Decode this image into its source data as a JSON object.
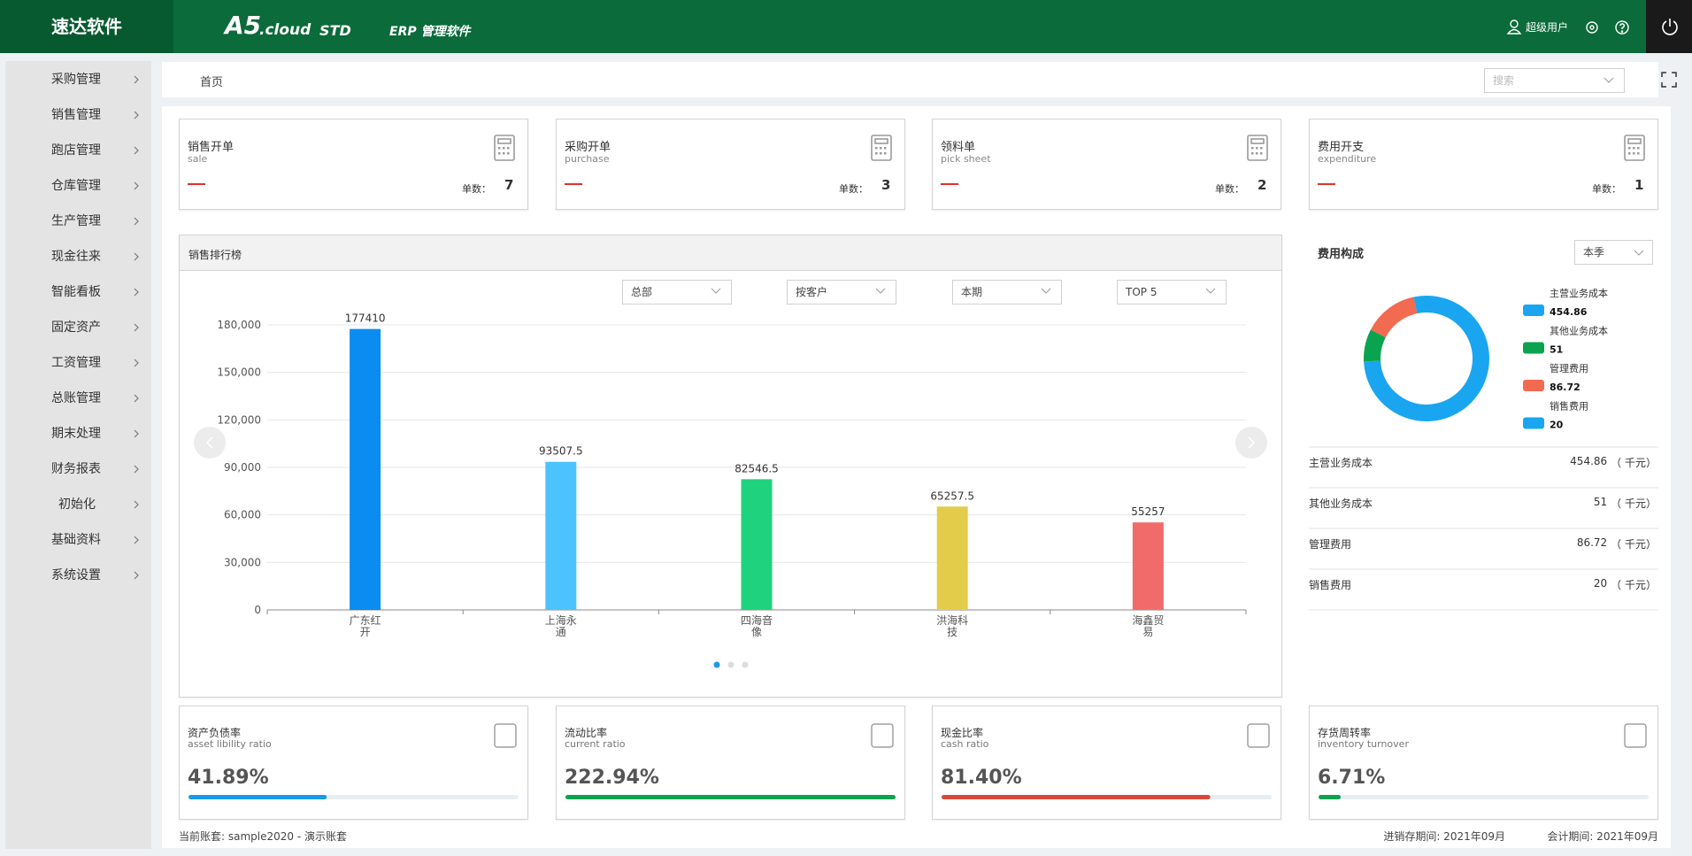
{
  "header": {
    "brand": "速达软件",
    "product": "A5",
    "product_suffix": ".cloud",
    "edition": "STD",
    "subtitle": "ERP 管理软件",
    "user": "超级用户"
  },
  "sidebar": {
    "items": [
      "采购管理",
      "销售管理",
      "跑店管理",
      "仓库管理",
      "生产管理",
      "现金往来",
      "智能看板",
      "固定资产",
      "工资管理",
      "总账管理",
      "期末处理",
      "财务报表",
      "初始化",
      "基础资料",
      "系统设置"
    ]
  },
  "breadcrumb": "首页",
  "search_placeholder": "搜索",
  "summary_cards": [
    {
      "title": "销售开单",
      "subtitle": "sale",
      "count_label": "单数：",
      "count": 7
    },
    {
      "title": "采购开单",
      "subtitle": "purchase",
      "count_label": "单数：",
      "count": 3
    },
    {
      "title": "领料单",
      "subtitle": "pick sheet",
      "count_label": "单数：",
      "count": 2
    },
    {
      "title": "费用开支",
      "subtitle": "expenditure",
      "count_label": "单数：",
      "count": 1
    }
  ],
  "sales_chart": {
    "type": "bar",
    "title": "销售排行榜",
    "filters": [
      "总部",
      "按客户",
      "本期",
      "TOP 5"
    ],
    "categories": [
      "广东红开",
      "上海永通",
      "四海音像",
      "洪海科技",
      "海鑫贸易"
    ],
    "values": [
      177410,
      93507.5,
      82546.5,
      65257.5,
      55257
    ],
    "colors": [
      "#0a8cf0",
      "#4cc3ff",
      "#1fd37e",
      "#e3cc4a",
      "#f26b6b"
    ],
    "ylim": [
      0,
      180000
    ],
    "yticks": [
      0,
      {
        "value": 30000,
        "label": "30,000"
      },
      {
        "value": 60000,
        "label": "60,000"
      },
      {
        "value": 90000,
        "label": "90,000"
      },
      {
        "value": 120000,
        "label": "120,000"
      },
      {
        "value": 150000,
        "label": "150,000"
      },
      {
        "value": 180000,
        "label": "180,000"
      }
    ],
    "grid": true
  },
  "cost_breakdown": {
    "type": "donut",
    "title": "费用构成",
    "period": "本季",
    "unit": "（ 千元）",
    "items": [
      {
        "name": "主营业务成本",
        "value": 454.86,
        "color": "#1aa5f0"
      },
      {
        "name": "其他业务成本",
        "value": 51,
        "color": "#0aa350"
      },
      {
        "name": "管理费用",
        "value": 86.72,
        "color": "#f26a50"
      },
      {
        "name": "销售费用",
        "value": 20,
        "color": "#1aa5f0"
      }
    ]
  },
  "ratios": [
    {
      "title": "资产负债率",
      "subtitle": "asset libility ratio",
      "value": 41.89,
      "value_label": "41.89%",
      "color": "#1a9ae8"
    },
    {
      "title": "流动比率",
      "subtitle": "current ratio",
      "value": 222.94,
      "value_label": "222.94%",
      "color": "#0aa350"
    },
    {
      "title": "现金比率",
      "subtitle": "cash ratio",
      "value": 81.4,
      "value_label": "81.40%",
      "color": "#d9473a"
    },
    {
      "title": "存货周转率",
      "subtitle": "inventory turnover",
      "value": 6.71,
      "value_label": "6.71%",
      "color": "#0aa350"
    }
  ],
  "footer": {
    "account": "当前账套: sample2020 - 演示账套",
    "inventory_period": "进销存期间: 2021年09月",
    "accounting_period": "会计期间: 2021年09月"
  }
}
